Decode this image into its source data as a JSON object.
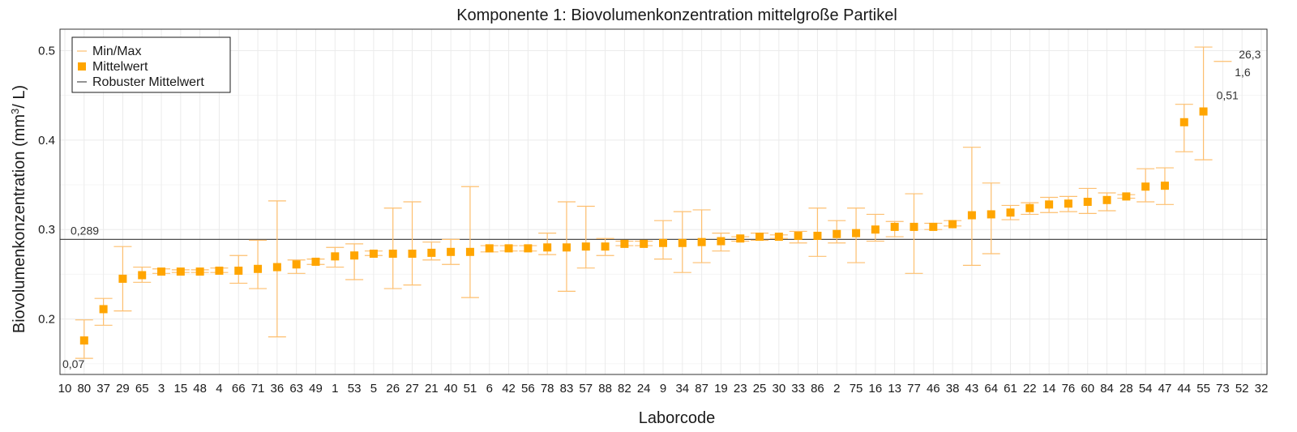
{
  "chart_data": {
    "type": "errorbar",
    "title": "Komponente 1: Biovolumenkonzentration mittelgroße Partikel",
    "xlabel": "Laborcode",
    "ylabel_main": "Biovolumenkonzentration (mm",
    "ylabel_sup": "3",
    "ylabel_tail": "/ L)",
    "ylim": [
      0.138,
      0.524
    ],
    "yticks": [
      0.2,
      0.3,
      0.4,
      0.5
    ],
    "ytick_labels": [
      "0.2",
      "0.3",
      "0.4",
      "0.5"
    ],
    "grid": true,
    "legend_position": "top-left",
    "legend": [
      {
        "key": "minmax",
        "label": "Min/Max"
      },
      {
        "key": "mean",
        "label": "Mittelwert"
      },
      {
        "key": "robust",
        "label": "Robuster Mittelwert"
      }
    ],
    "robust_mean": 0.289,
    "robust_mean_label": "0,289",
    "colors": {
      "minmax": "#fdbf6f",
      "mean": "#ffa500",
      "robust": "#4d4d4d",
      "annot": "#333333"
    },
    "categories": [
      "10",
      "80",
      "37",
      "29",
      "65",
      "3",
      "15",
      "48",
      "4",
      "66",
      "71",
      "36",
      "63",
      "49",
      "1",
      "53",
      "5",
      "26",
      "27",
      "21",
      "40",
      "51",
      "6",
      "42",
      "56",
      "78",
      "83",
      "57",
      "88",
      "82",
      "24",
      "9",
      "34",
      "87",
      "19",
      "23",
      "25",
      "30",
      "33",
      "86",
      "2",
      "75",
      "16",
      "13",
      "77",
      "46",
      "38",
      "43",
      "64",
      "61",
      "22",
      "14",
      "76",
      "60",
      "84",
      "28",
      "54",
      "47",
      "44",
      "55",
      "73",
      "52",
      "32"
    ],
    "series": [
      {
        "name": "Mittelwert",
        "values": [
          null,
          0.176,
          0.211,
          0.245,
          0.249,
          0.253,
          0.253,
          0.253,
          0.254,
          0.254,
          0.256,
          0.258,
          0.261,
          0.264,
          0.27,
          0.271,
          0.273,
          0.273,
          0.273,
          0.274,
          0.275,
          0.275,
          0.279,
          0.279,
          0.279,
          0.28,
          0.28,
          0.281,
          0.281,
          0.284,
          0.284,
          0.285,
          0.285,
          0.286,
          0.287,
          0.29,
          0.292,
          0.292,
          0.293,
          0.293,
          0.295,
          0.296,
          0.3,
          0.303,
          0.303,
          0.303,
          0.306,
          0.316,
          0.317,
          0.319,
          0.324,
          0.328,
          0.329,
          0.331,
          0.333,
          0.337,
          0.348,
          0.349,
          0.42,
          0.432,
          null,
          null,
          null
        ]
      },
      {
        "name": "Min/Max",
        "min": [
          null,
          0.156,
          0.193,
          0.209,
          0.241,
          0.251,
          0.252,
          0.252,
          0.252,
          0.24,
          0.234,
          0.18,
          0.251,
          0.261,
          0.258,
          0.244,
          0.271,
          0.234,
          0.238,
          0.266,
          0.261,
          0.224,
          0.275,
          0.276,
          0.276,
          0.272,
          0.231,
          0.257,
          0.271,
          0.282,
          0.282,
          0.267,
          0.252,
          0.263,
          0.276,
          0.287,
          0.288,
          0.29,
          0.285,
          0.27,
          0.285,
          0.263,
          0.287,
          0.292,
          0.251,
          0.3,
          0.304,
          0.26,
          0.273,
          0.311,
          0.317,
          0.319,
          0.32,
          0.318,
          0.321,
          0.335,
          0.331,
          0.328,
          0.387,
          0.378,
          null,
          null,
          null
        ],
        "max": [
          null,
          0.199,
          0.223,
          0.281,
          0.258,
          0.256,
          0.255,
          0.255,
          0.257,
          0.271,
          0.288,
          0.332,
          0.266,
          0.267,
          0.28,
          0.284,
          0.276,
          0.324,
          0.331,
          0.286,
          0.289,
          0.348,
          0.282,
          0.282,
          0.282,
          0.296,
          0.331,
          0.326,
          0.29,
          0.287,
          0.287,
          0.31,
          0.32,
          0.322,
          0.296,
          0.292,
          0.296,
          0.294,
          0.298,
          0.324,
          0.31,
          0.324,
          0.317,
          0.309,
          0.34,
          0.307,
          0.31,
          0.392,
          0.352,
          0.327,
          0.33,
          0.336,
          0.337,
          0.346,
          0.341,
          0.339,
          0.368,
          0.369,
          0.44,
          0.504,
          null,
          null,
          null
        ]
      }
    ],
    "annotations": [
      {
        "label": "0,07",
        "category": "10",
        "y": 0.15
      },
      {
        "label": "0,51",
        "category": "55",
        "y": 0.45
      },
      {
        "label": "26,3",
        "category": "52",
        "y": 0.496
      },
      {
        "label": "1,6",
        "category": "52",
        "y": 0.476
      },
      {
        "label": "0,289",
        "category": "10",
        "y": 0.289
      }
    ],
    "offscale_markers": [
      {
        "category": "73",
        "y": 0.488
      }
    ]
  }
}
